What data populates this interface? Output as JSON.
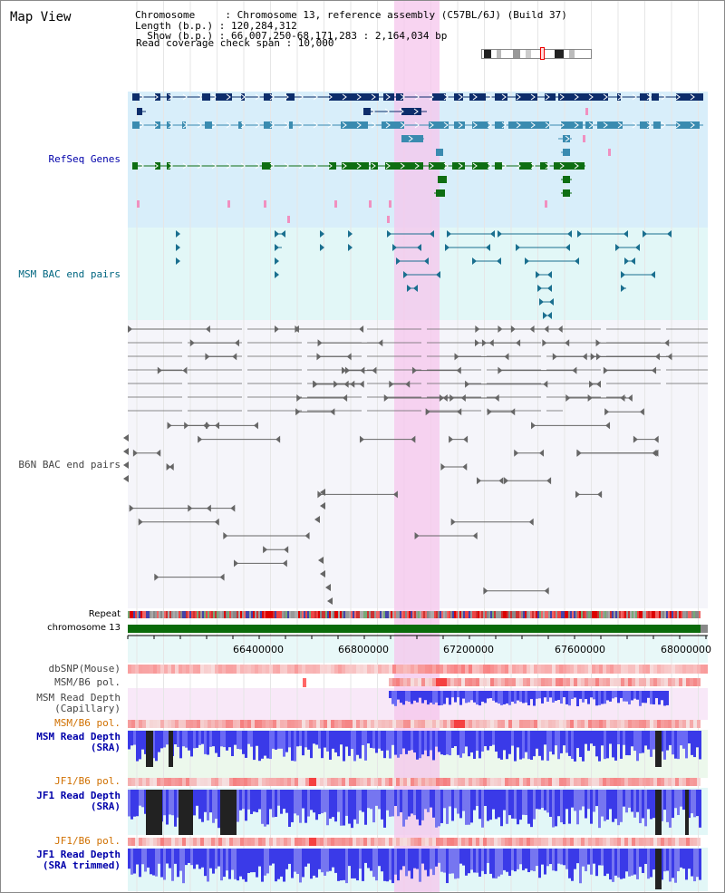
{
  "view_title": "Map View",
  "info": {
    "chromosome_line": "Chromosome     : Chromosome 13, reference assembly (C57BL/6J) (Build 37)",
    "length_line": "Length (b.p.) : 120,284,312",
    "show_line": "  Show (b.p.) : 66,007,250-68,171,283 : 2,164,034 bp",
    "coverage_line": "Read coverage check span : 10,000"
  },
  "tracks": {
    "refseq_genes": "RefSeq Genes",
    "msm_bac": "MSM BAC end pairs",
    "b6n_bac": "B6N BAC end pairs",
    "repeat": "Repeat",
    "chromosome": "chromosome 13",
    "dbsnp": "dbSNP(Mouse)",
    "msm_b6_pol_1": "MSM/B6 pol.",
    "msm_depth_cap": "MSM Read Depth\n(Capillary)",
    "msm_b6_pol_2": "MSM/B6 pol.",
    "msm_depth_sra": "MSM Read Depth\n(SRA)",
    "jf1_b6_pol_1": "JF1/B6 pol.",
    "jf1_depth_sra": "JF1 Read Depth\n(SRA)",
    "jf1_b6_pol_2": "JF1/B6 pol.",
    "jf1_depth_trim": "JF1 Read Depth\n(SRA trimmed)"
  },
  "axis": {
    "ticks": [
      "66400000",
      "66800000",
      "67200000",
      "67600000",
      "68000000"
    ]
  },
  "colors": {
    "gene_dark": "#0d2d6b",
    "gene_mid": "#3a8bb0",
    "gene_green": "#0e6e12",
    "msm_label": "#006680",
    "b6n_label": "#444444",
    "refseq_label": "#0000aa",
    "orange_label": "#d07000",
    "highlight": "#f5c6ec"
  }
}
